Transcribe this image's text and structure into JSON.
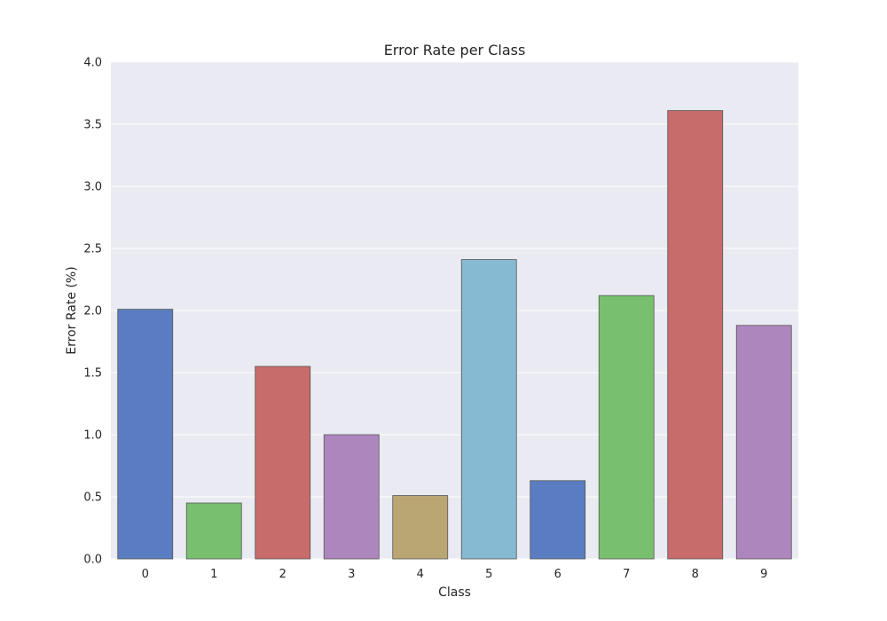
{
  "chart_data": {
    "type": "bar",
    "title": "Error Rate per Class",
    "xlabel": "Class",
    "ylabel": "Error Rate (%)",
    "categories": [
      "0",
      "1",
      "2",
      "3",
      "4",
      "5",
      "6",
      "7",
      "8",
      "9"
    ],
    "values": [
      2.01,
      0.45,
      1.55,
      1.0,
      0.51,
      2.41,
      0.63,
      2.12,
      3.61,
      1.88
    ],
    "ylim": [
      0,
      4.0
    ],
    "yticks": [
      "0.0",
      "0.5",
      "1.0",
      "1.5",
      "2.0",
      "2.5",
      "3.0",
      "3.5",
      "4.0"
    ],
    "grid": true,
    "colors": {
      "background": "#EAEAF2",
      "bars": [
        "#5A7DC1",
        "#78C06F",
        "#C86B6B",
        "#AE86BE",
        "#BAA673",
        "#86B9D2",
        "#5A7DC1",
        "#78C06F",
        "#C86B6B",
        "#AE86BE"
      ]
    }
  }
}
